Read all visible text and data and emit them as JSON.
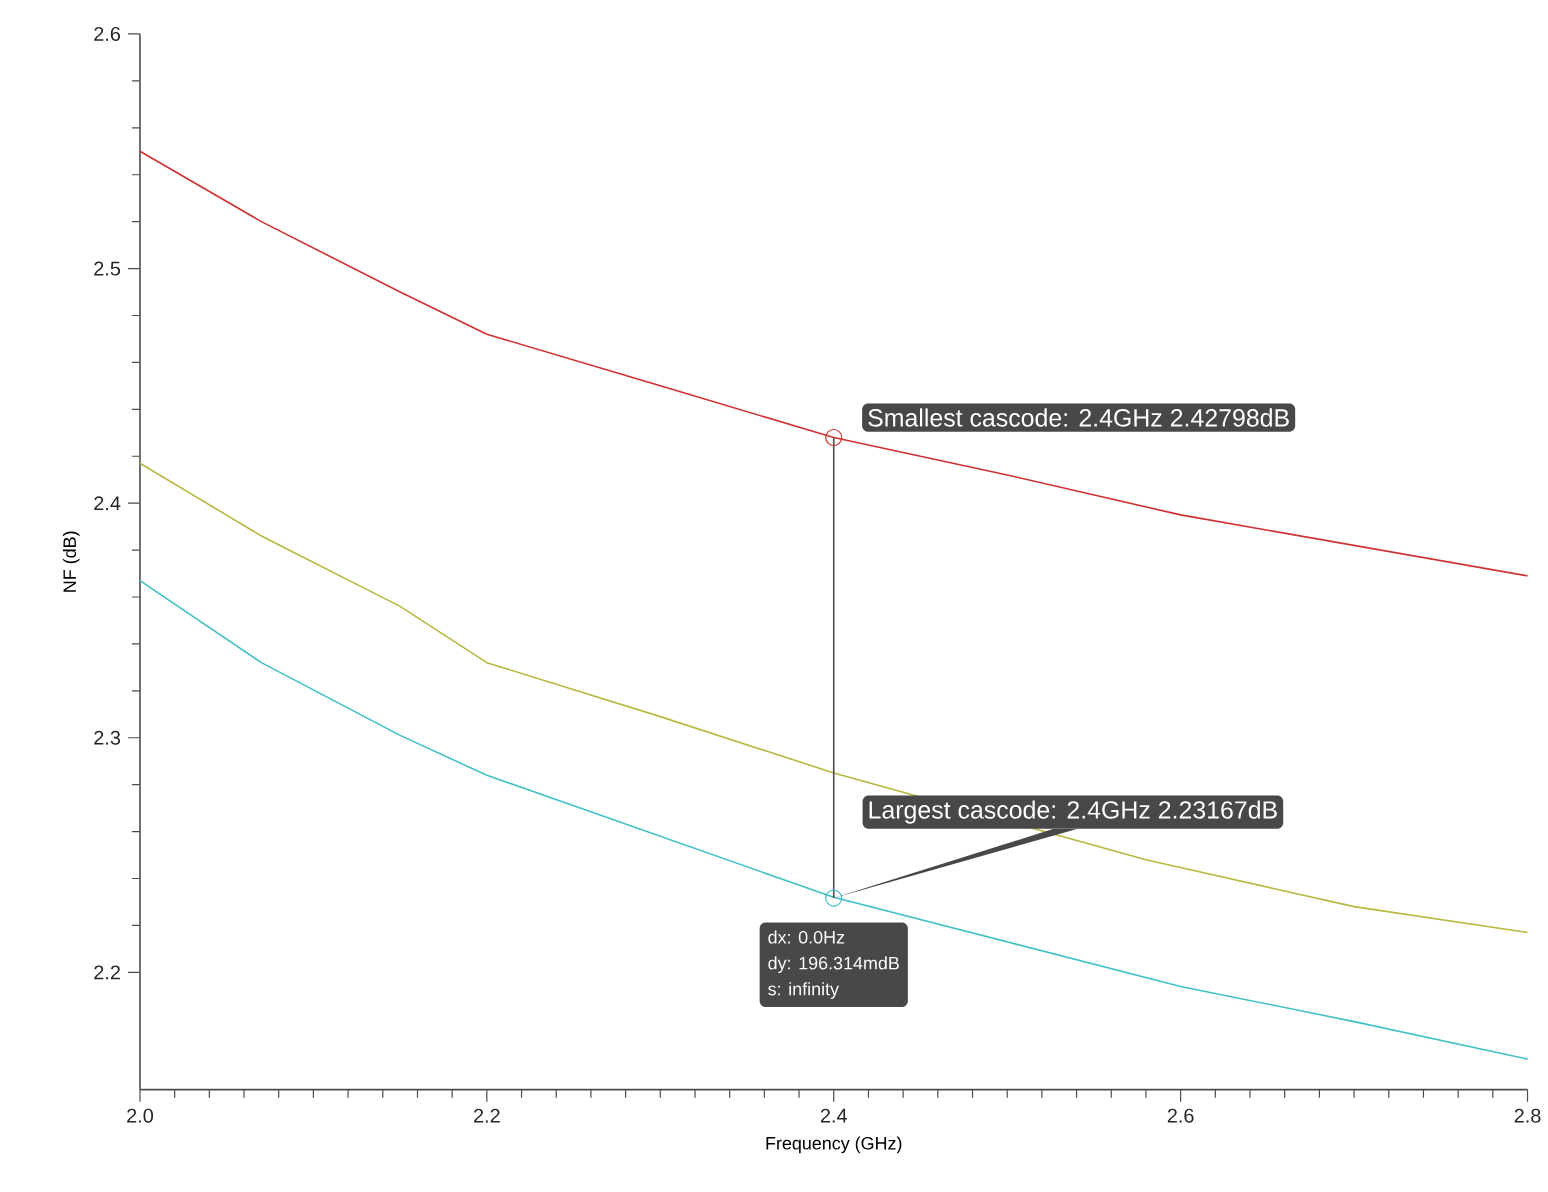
{
  "chart_data": {
    "type": "line",
    "xlabel": "Frequency (GHz)",
    "ylabel": "NF (dB)",
    "xlim": [
      2.0,
      2.8
    ],
    "ylim": [
      2.15,
      2.6
    ],
    "xticks": [
      {
        "value": 2.0,
        "label": "2.0"
      },
      2.2,
      2.4,
      2.6,
      2.8
    ],
    "yticks": [
      2.2,
      2.3,
      2.4,
      2.5,
      2.6
    ],
    "x": [
      2.0,
      2.07,
      2.15,
      2.2,
      2.3,
      2.4,
      2.5,
      2.6,
      2.7,
      2.8
    ],
    "series": [
      {
        "color": "#d03030",
        "values": [
          2.55,
          2.52,
          2.49,
          2.472,
          2.45,
          2.428,
          2.412,
          2.395,
          2.382,
          2.369
        ]
      },
      {
        "color": "#b8b840",
        "x": [
          2.0,
          2.07,
          2.15,
          2.2,
          2.3,
          2.4,
          2.58,
          2.7,
          2.8
        ],
        "values": [
          2.417,
          2.386,
          2.356,
          2.332,
          2.309,
          2.285,
          2.248,
          2.228,
          2.217
        ]
      },
      {
        "color": "#40c0c8",
        "values": [
          2.367,
          2.332,
          2.301,
          2.284,
          2.258,
          2.232,
          2.213,
          2.194,
          2.179,
          2.163
        ]
      }
    ],
    "annotations": [
      {
        "text": "Smallest cascode: 2.4GHz 2.42798dB",
        "x": 2.4,
        "y": 2.42798
      },
      {
        "text": "Largest cascode: 2.4GHz 2.23167dB",
        "x": 2.4,
        "y": 2.23167
      },
      "dx: 0.0Hz",
      "dy: 196.314mdB",
      "s: infinity"
    ],
    "marker": "none",
    "line_style": "solid"
  }
}
